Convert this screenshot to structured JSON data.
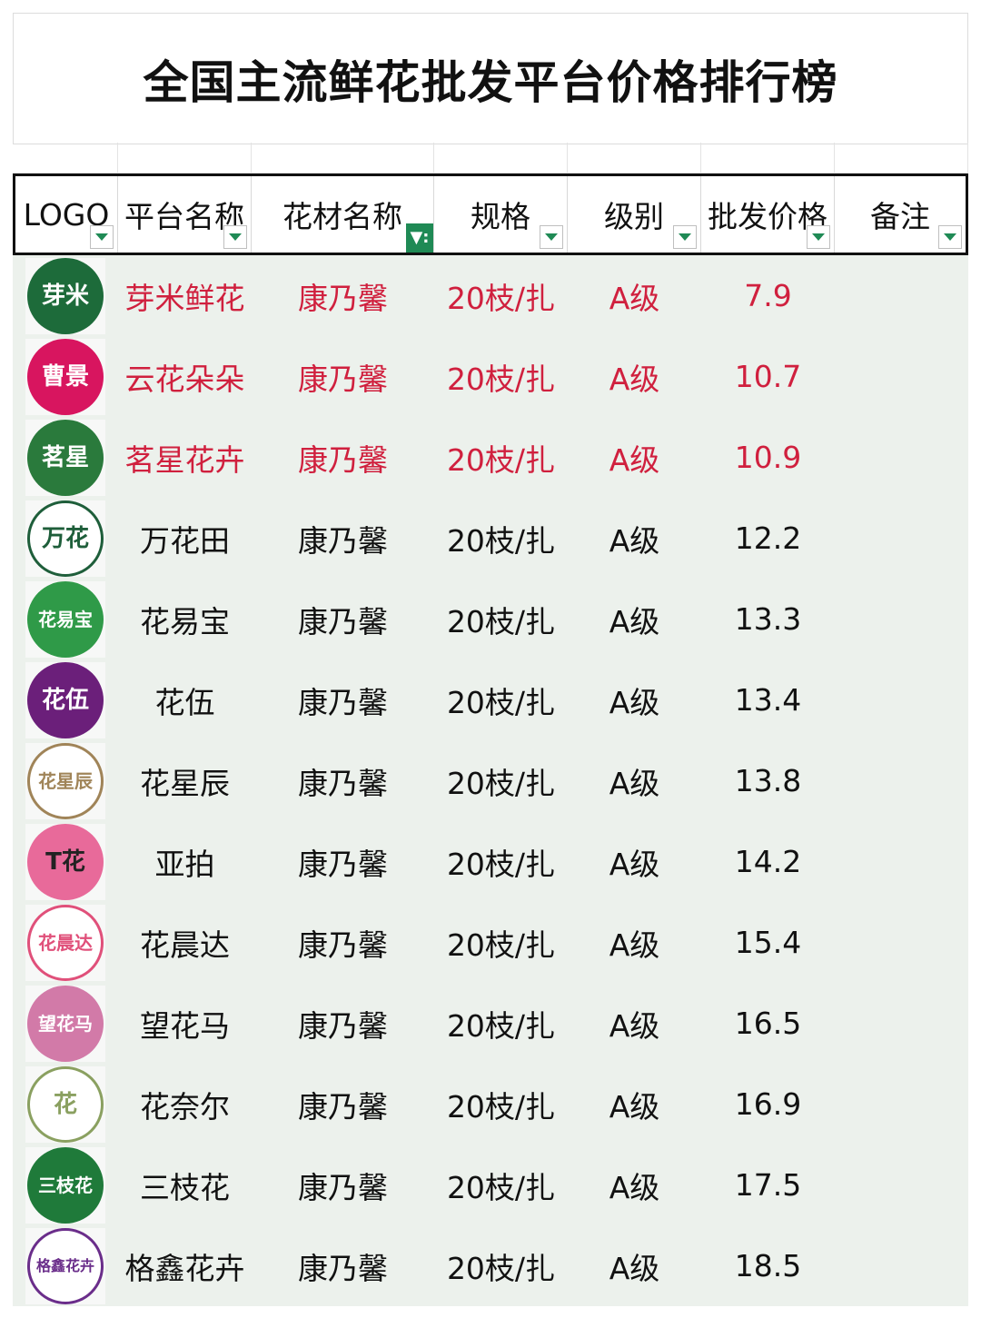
{
  "title": "全国主流鲜花批发平台价格排行榜",
  "headers": [
    "LOGO",
    "平台名称",
    "花材名称",
    "规格",
    "级别",
    "批发价格",
    "备注"
  ],
  "colors": {
    "accent_green": "#1f8a55",
    "highlight_red": "#d0203e",
    "row_bg": "#ecf1ec"
  },
  "rows": [
    {
      "logo_text": "芽米",
      "logo_color": "#1d6b3a",
      "logo_text_color": "#ffffff",
      "platform": "芽米鲜花",
      "flower": "康乃馨",
      "spec": "20枝/扎",
      "grade": "A级",
      "price": "7.9",
      "note": "",
      "highlight": true
    },
    {
      "logo_text": "曹景",
      "logo_color": "#d8155f",
      "logo_text_color": "#ffffff",
      "platform": "云花朵朵",
      "flower": "康乃馨",
      "spec": "20枝/扎",
      "grade": "A级",
      "price": "10.7",
      "note": "",
      "highlight": true
    },
    {
      "logo_text": "茗星",
      "logo_color": "#2a7a3c",
      "logo_text_color": "#ffffff",
      "platform": "茗星花卉",
      "flower": "康乃馨",
      "spec": "20枝/扎",
      "grade": "A级",
      "price": "10.9",
      "note": "",
      "highlight": true
    },
    {
      "logo_text": "万花",
      "logo_color": "#ffffff",
      "logo_text_color": "#1e5e3a",
      "platform": "万花田",
      "flower": "康乃馨",
      "spec": "20枝/扎",
      "grade": "A级",
      "price": "12.2",
      "note": "",
      "highlight": false
    },
    {
      "logo_text": "花易宝",
      "logo_color": "#2f9a48",
      "logo_text_color": "#ffffff",
      "platform": "花易宝",
      "flower": "康乃馨",
      "spec": "20枝/扎",
      "grade": "A级",
      "price": "13.3",
      "note": "",
      "highlight": false
    },
    {
      "logo_text": "花伍",
      "logo_color": "#6b1f7a",
      "logo_text_color": "#ffffff",
      "platform": "花伍",
      "flower": "康乃馨",
      "spec": "20枝/扎",
      "grade": "A级",
      "price": "13.4",
      "note": "",
      "highlight": false
    },
    {
      "logo_text": "花星辰",
      "logo_color": "#ffffff",
      "logo_text_color": "#a08458",
      "platform": "花星辰",
      "flower": "康乃馨",
      "spec": "20枝/扎",
      "grade": "A级",
      "price": "13.8",
      "note": "",
      "highlight": false
    },
    {
      "logo_text": "T花",
      "logo_color": "#e86a9a",
      "logo_text_color": "#222222",
      "platform": "亚拍",
      "flower": "康乃馨",
      "spec": "20枝/扎",
      "grade": "A级",
      "price": "14.2",
      "note": "",
      "highlight": false
    },
    {
      "logo_text": "花晨达",
      "logo_color": "#ffffff",
      "logo_text_color": "#e0507a",
      "platform": "花晨达",
      "flower": "康乃馨",
      "spec": "20枝/扎",
      "grade": "A级",
      "price": "15.4",
      "note": "",
      "highlight": false
    },
    {
      "logo_text": "望花马",
      "logo_color": "#d27aa8",
      "logo_text_color": "#ffffff",
      "platform": "望花马",
      "flower": "康乃馨",
      "spec": "20枝/扎",
      "grade": "A级",
      "price": "16.5",
      "note": "",
      "highlight": false
    },
    {
      "logo_text": "花",
      "logo_color": "#ffffff",
      "logo_text_color": "#8aa060",
      "platform": "花奈尔",
      "flower": "康乃馨",
      "spec": "20枝/扎",
      "grade": "A级",
      "price": "16.9",
      "note": "",
      "highlight": false
    },
    {
      "logo_text": "三枝花",
      "logo_color": "#1f7a3a",
      "logo_text_color": "#ffffff",
      "platform": "三枝花",
      "flower": "康乃馨",
      "spec": "20枝/扎",
      "grade": "A级",
      "price": "17.5",
      "note": "",
      "highlight": false
    },
    {
      "logo_text": "格鑫花卉",
      "logo_color": "#ffffff",
      "logo_text_color": "#6a2d8a",
      "platform": "格鑫花卉",
      "flower": "康乃馨",
      "spec": "20枝/扎",
      "grade": "A级",
      "price": "18.5",
      "note": "",
      "highlight": false
    }
  ]
}
